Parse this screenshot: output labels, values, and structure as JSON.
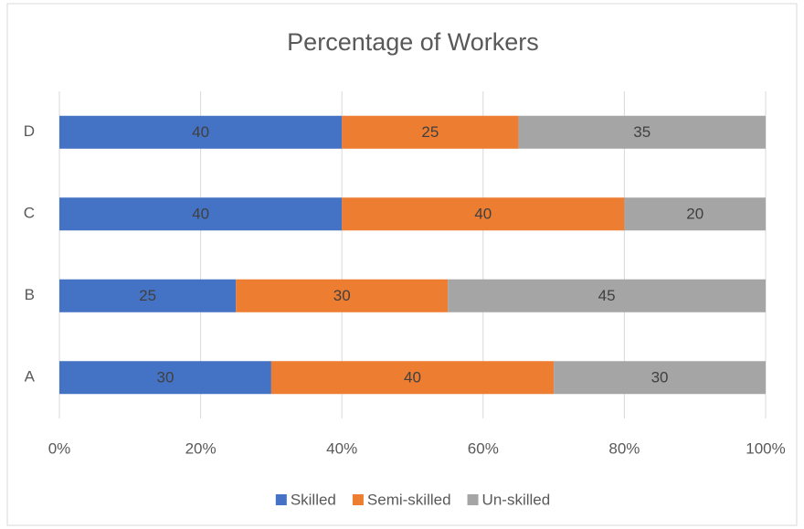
{
  "chart_data": {
    "type": "stacked-barh",
    "title": "Percentage of Workers",
    "categories": [
      "A",
      "B",
      "C",
      "D"
    ],
    "series": [
      {
        "name": "Skilled",
        "color": "#4472c4",
        "values": [
          30,
          25,
          40,
          40
        ]
      },
      {
        "name": "Semi-skilled",
        "color": "#ed7d31",
        "values": [
          40,
          30,
          40,
          25
        ]
      },
      {
        "name": "Un-skilled",
        "color": "#a5a5a5",
        "values": [
          30,
          45,
          20,
          35
        ]
      }
    ],
    "xlim": [
      0,
      100
    ],
    "xticks": [
      {
        "value": 0,
        "label": "0%"
      },
      {
        "value": 20,
        "label": "20%"
      },
      {
        "value": 40,
        "label": "40%"
      },
      {
        "value": 60,
        "label": "60%"
      },
      {
        "value": 80,
        "label": "80%"
      },
      {
        "value": 100,
        "label": "100%"
      }
    ],
    "grid": true,
    "legend": "bottom"
  }
}
